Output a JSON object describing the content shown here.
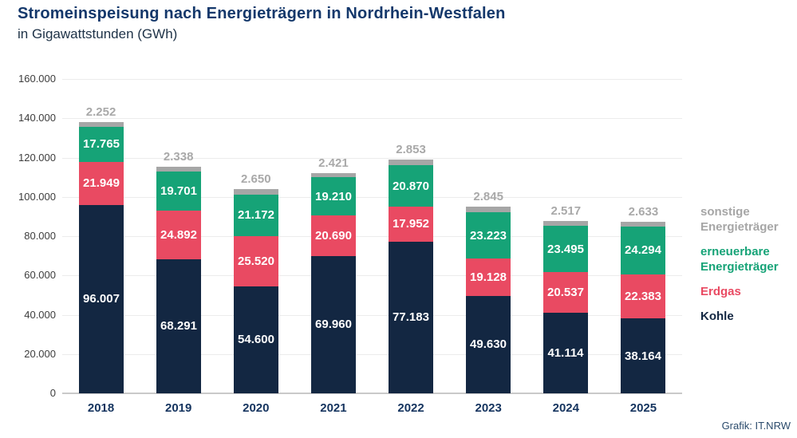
{
  "header": {
    "title": "Stromeinspeisung nach Energieträgern in Nordrhein-Westfalen",
    "subtitle": "in Gigawattstunden (GWh)"
  },
  "footer": {
    "credit": "Grafik: IT.NRW"
  },
  "colors": {
    "kohle": "#132742",
    "erdgas": "#e94a62",
    "erneuerbare": "#16a377",
    "sonstige": "#a6a6a6",
    "title": "#14386b",
    "x_label": "#15345f",
    "gridline": "#ececec",
    "baseline": "#c9c9c9"
  },
  "chart_data": {
    "type": "bar",
    "stacked": true,
    "title": "Stromeinspeisung nach Energieträgern in Nordrhein-Westfalen",
    "subtitle": "in Gigawattstunden (GWh)",
    "ylabel": "GWh",
    "ylim": [
      0,
      160000
    ],
    "ytick_step": 20000,
    "ytick_labels": [
      "0",
      "20.000",
      "40.000",
      "60.000",
      "80.000",
      "100.000",
      "120.000",
      "140.000",
      "160.000"
    ],
    "grid": true,
    "legend_position": "right",
    "categories": [
      "2018",
      "2019",
      "2020",
      "2021",
      "2022",
      "2023",
      "2024",
      "2025"
    ],
    "series": [
      {
        "name": "Kohle",
        "color_key": "kohle",
        "label_position": "inside",
        "values": [
          96007,
          68291,
          54600,
          69960,
          77183,
          49630,
          41114,
          38164
        ],
        "labels": [
          "96.007",
          "68.291",
          "54.600",
          "69.960",
          "77.183",
          "49.630",
          "41.114",
          "38.164"
        ]
      },
      {
        "name": "Erdgas",
        "color_key": "erdgas",
        "label_position": "inside",
        "values": [
          21949,
          24892,
          25520,
          20690,
          17952,
          19128,
          20537,
          22383
        ],
        "labels": [
          "21.949",
          "24.892",
          "25.520",
          "20.690",
          "17.952",
          "19.128",
          "20.537",
          "22.383"
        ]
      },
      {
        "name": "erneuerbare Energieträger",
        "color_key": "erneuerbare",
        "label_position": "inside",
        "values": [
          17765,
          19701,
          21172,
          19210,
          20870,
          23223,
          23495,
          24294
        ],
        "labels": [
          "17.765",
          "19.701",
          "21.172",
          "19.210",
          "20.870",
          "23.223",
          "23.495",
          "24.294"
        ]
      },
      {
        "name": "sonstige Energieträger",
        "color_key": "sonstige",
        "label_position": "above",
        "values": [
          2252,
          2338,
          2650,
          2421,
          2853,
          2845,
          2517,
          2633
        ],
        "labels": [
          "2.252",
          "2.338",
          "2.650",
          "2.421",
          "2.853",
          "2.845",
          "2.517",
          "2.633"
        ]
      }
    ]
  },
  "legend": {
    "items": [
      {
        "label": "sonstige Energieträger",
        "color_key": "sonstige"
      },
      {
        "label": "erneuerbare Energieträger",
        "color_key": "erneuerbare"
      },
      {
        "label": "Erdgas",
        "color_key": "erdgas"
      },
      {
        "label": "Kohle",
        "color_key": "kohle"
      }
    ]
  }
}
